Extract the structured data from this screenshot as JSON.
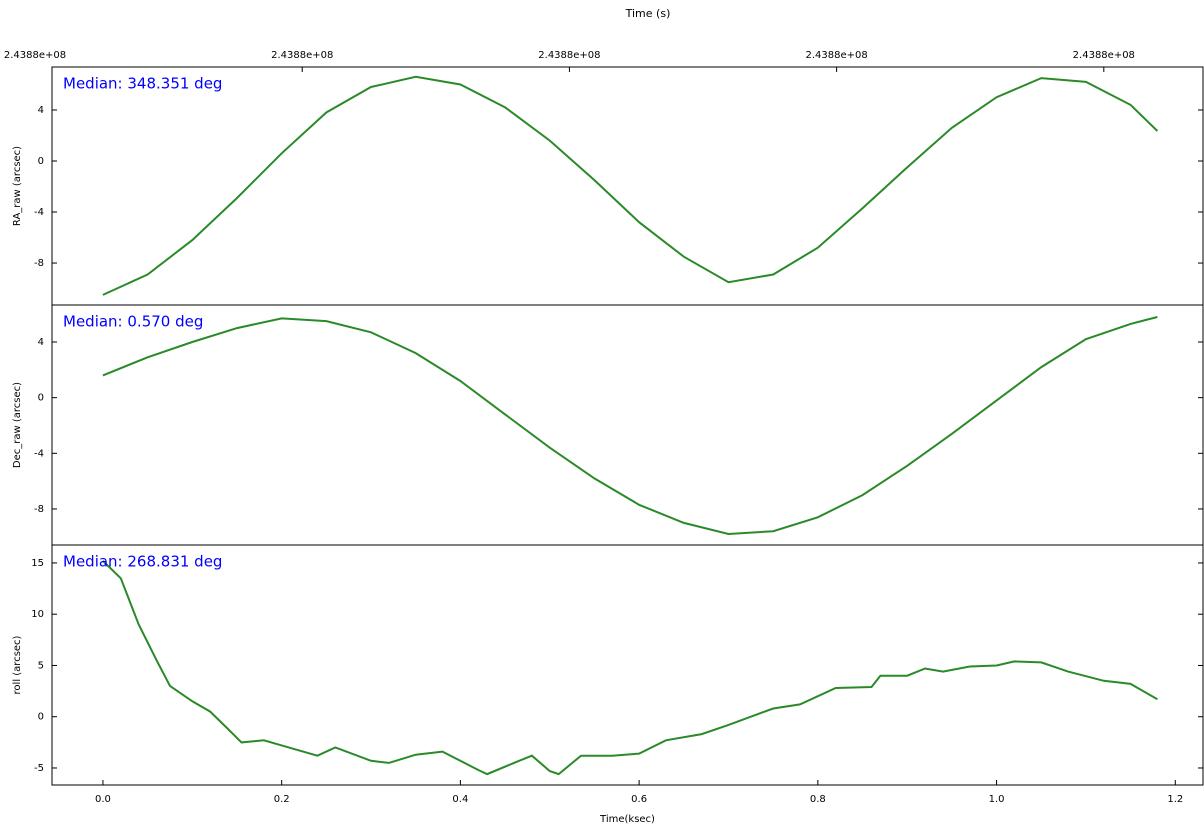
{
  "chart_data": [
    {
      "type": "line",
      "x2label": "Time (s)",
      "ylabel": "RA_raw (arcsec)",
      "annotation": "Median: 348.351 deg",
      "color": "#2a8a2a",
      "annotation_color": "#0000ff",
      "xlim": [
        -0.057,
        1.231
      ],
      "ylim": [
        -11.29,
        7.37
      ],
      "yticks": [
        -8,
        -4,
        0,
        4
      ],
      "x2ticks": [
        {
          "value": -0.076,
          "label": "2.4388e+08"
        },
        {
          "value": 0.223,
          "label": "2.4388e+08"
        },
        {
          "value": 0.522,
          "label": "2.4388e+08"
        },
        {
          "value": 0.821,
          "label": "2.4388e+08"
        },
        {
          "value": 1.12,
          "label": "2.4388e+08"
        }
      ],
      "x": [
        0,
        0.05,
        0.1,
        0.15,
        0.2,
        0.25,
        0.3,
        0.35,
        0.4,
        0.45,
        0.5,
        0.55,
        0.6,
        0.65,
        0.7,
        0.75,
        0.8,
        0.85,
        0.9,
        0.95,
        1.0,
        1.05,
        1.1,
        1.15,
        1.18
      ],
      "values": [
        -10.5,
        -8.9,
        -6.2,
        -2.9,
        0.6,
        3.8,
        5.8,
        6.6,
        6.0,
        4.2,
        1.6,
        -1.5,
        -4.8,
        -7.5,
        -9.5,
        -8.9,
        -6.8,
        -3.7,
        -0.5,
        2.6,
        5.0,
        6.5,
        6.2,
        4.4,
        2.35
      ]
    },
    {
      "type": "line",
      "ylabel": "Dec_raw (arcsec)",
      "annotation": "Median: 0.570 deg",
      "color": "#2a8a2a",
      "annotation_color": "#0000ff",
      "xlim": [
        -0.057,
        1.231
      ],
      "ylim": [
        -10.59,
        6.66
      ],
      "yticks": [
        -8,
        -4,
        0,
        4
      ],
      "x": [
        0,
        0.05,
        0.1,
        0.15,
        0.2,
        0.25,
        0.3,
        0.35,
        0.4,
        0.45,
        0.5,
        0.55,
        0.6,
        0.65,
        0.7,
        0.75,
        0.8,
        0.85,
        0.9,
        0.95,
        1.0,
        1.05,
        1.1,
        1.15,
        1.18
      ],
      "values": [
        1.6,
        2.9,
        4.0,
        5.0,
        5.7,
        5.5,
        4.7,
        3.2,
        1.2,
        -1.2,
        -3.6,
        -5.8,
        -7.7,
        -9.0,
        -9.8,
        -9.6,
        -8.6,
        -7.0,
        -4.9,
        -2.6,
        -0.2,
        2.2,
        4.2,
        5.3,
        5.8
      ]
    },
    {
      "type": "line",
      "xlabel": "Time(ksec)",
      "ylabel": "roll (arcsec)",
      "annotation": "Median: 268.831 deg",
      "color": "#2a8a2a",
      "annotation_color": "#0000ff",
      "xlim": [
        -0.057,
        1.231
      ],
      "ylim": [
        -6.66,
        16.75
      ],
      "yticks": [
        -5,
        0,
        5,
        10,
        15
      ],
      "xticks": [
        {
          "value": 0,
          "label": "0.0"
        },
        0.2,
        0.4,
        0.6,
        0.8,
        {
          "value": 1,
          "label": "1.0"
        },
        1.2
      ],
      "x": [
        0,
        0.02,
        0.04,
        0.06,
        0.075,
        0.1,
        0.12,
        0.14,
        0.155,
        0.18,
        0.2,
        0.24,
        0.26,
        0.3,
        0.32,
        0.35,
        0.38,
        0.42,
        0.43,
        0.46,
        0.48,
        0.5,
        0.51,
        0.535,
        0.57,
        0.6,
        0.63,
        0.67,
        0.7,
        0.75,
        0.78,
        0.82,
        0.86,
        0.87,
        0.9,
        0.92,
        0.94,
        0.97,
        1.0,
        1.02,
        1.05,
        1.08,
        1.12,
        1.15,
        1.18
      ],
      "values": [
        15.2,
        13.5,
        9,
        5.5,
        3,
        1.5,
        0.5,
        -1.2,
        -2.5,
        -2.3,
        -2.8,
        -3.8,
        -3.0,
        -4.3,
        -4.5,
        -3.7,
        -3.4,
        -5.2,
        -5.6,
        -4.5,
        -3.8,
        -5.3,
        -5.6,
        -3.8,
        -3.8,
        -3.6,
        -2.3,
        -1.7,
        -0.8,
        0.8,
        1.2,
        2.8,
        2.9,
        4.0,
        4.0,
        4.7,
        4.4,
        4.9,
        5.0,
        5.4,
        5.3,
        4.4,
        3.5,
        3.2,
        1.7
      ]
    }
  ]
}
